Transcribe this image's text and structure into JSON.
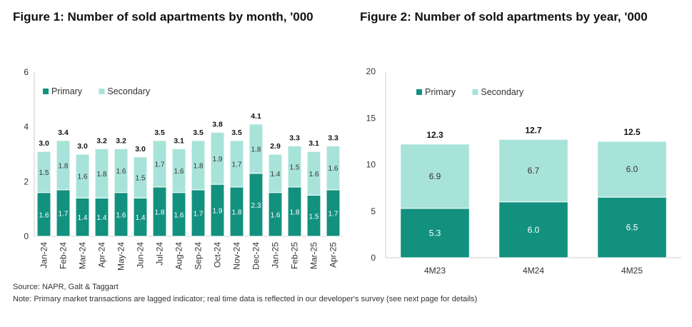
{
  "source": "Source: NAPR, Galt & Taggart",
  "note": "Note: Primary market transactions are lagged indicator; real time data is reflected in our developer's survey (see next page for details)",
  "colors": {
    "primary": "#13917f",
    "secondary": "#a8e3d9",
    "axis": "#cfcfcf"
  },
  "chart_data": [
    {
      "type": "bar",
      "stacked": true,
      "title": "Figure 1: Number of sold apartments by month, '000",
      "categories": [
        "Jan-24",
        "Feb-24",
        "Mar-24",
        "Apr-24",
        "May-24",
        "Jun-24",
        "Jul-24",
        "Aug-24",
        "Sep-24",
        "Oct-24",
        "Nov-24",
        "Dec-24",
        "Jan-25",
        "Feb-25",
        "Mar-25",
        "Apr-25"
      ],
      "series": [
        {
          "name": "Primary",
          "values": [
            1.6,
            1.7,
            1.4,
            1.4,
            1.6,
            1.4,
            1.8,
            1.6,
            1.7,
            1.9,
            1.8,
            2.3,
            1.6,
            1.8,
            1.5,
            1.7
          ]
        },
        {
          "name": "Secondary",
          "values": [
            1.5,
            1.8,
            1.6,
            1.8,
            1.6,
            1.5,
            1.7,
            1.6,
            1.8,
            1.9,
            1.7,
            1.8,
            1.4,
            1.5,
            1.6,
            1.6
          ]
        }
      ],
      "totals": [
        "3.0",
        "3.4",
        "3.0",
        "3.2",
        "3.2",
        "3.0",
        "3.5",
        "3.1",
        "3.5",
        "3.8",
        "3.5",
        "4.1",
        "2.9",
        "3.3",
        "3.1",
        "3.3"
      ],
      "ylim": [
        0,
        6
      ],
      "yticks": [
        0,
        2,
        4,
        6
      ],
      "legend": "top-left",
      "grid": false
    },
    {
      "type": "bar",
      "stacked": true,
      "title": "Figure 2: Number of sold apartments by year, '000",
      "categories": [
        "4M23",
        "4M24",
        "4M25"
      ],
      "series": [
        {
          "name": "Primary",
          "values": [
            5.3,
            6.0,
            6.5
          ]
        },
        {
          "name": "Secondary",
          "values": [
            6.9,
            6.7,
            6.0
          ]
        }
      ],
      "totals": [
        "12.3",
        "12.7",
        "12.5"
      ],
      "ylim": [
        0,
        20
      ],
      "yticks": [
        0,
        5,
        10,
        15,
        20
      ],
      "legend": "top-left",
      "grid": false
    }
  ]
}
